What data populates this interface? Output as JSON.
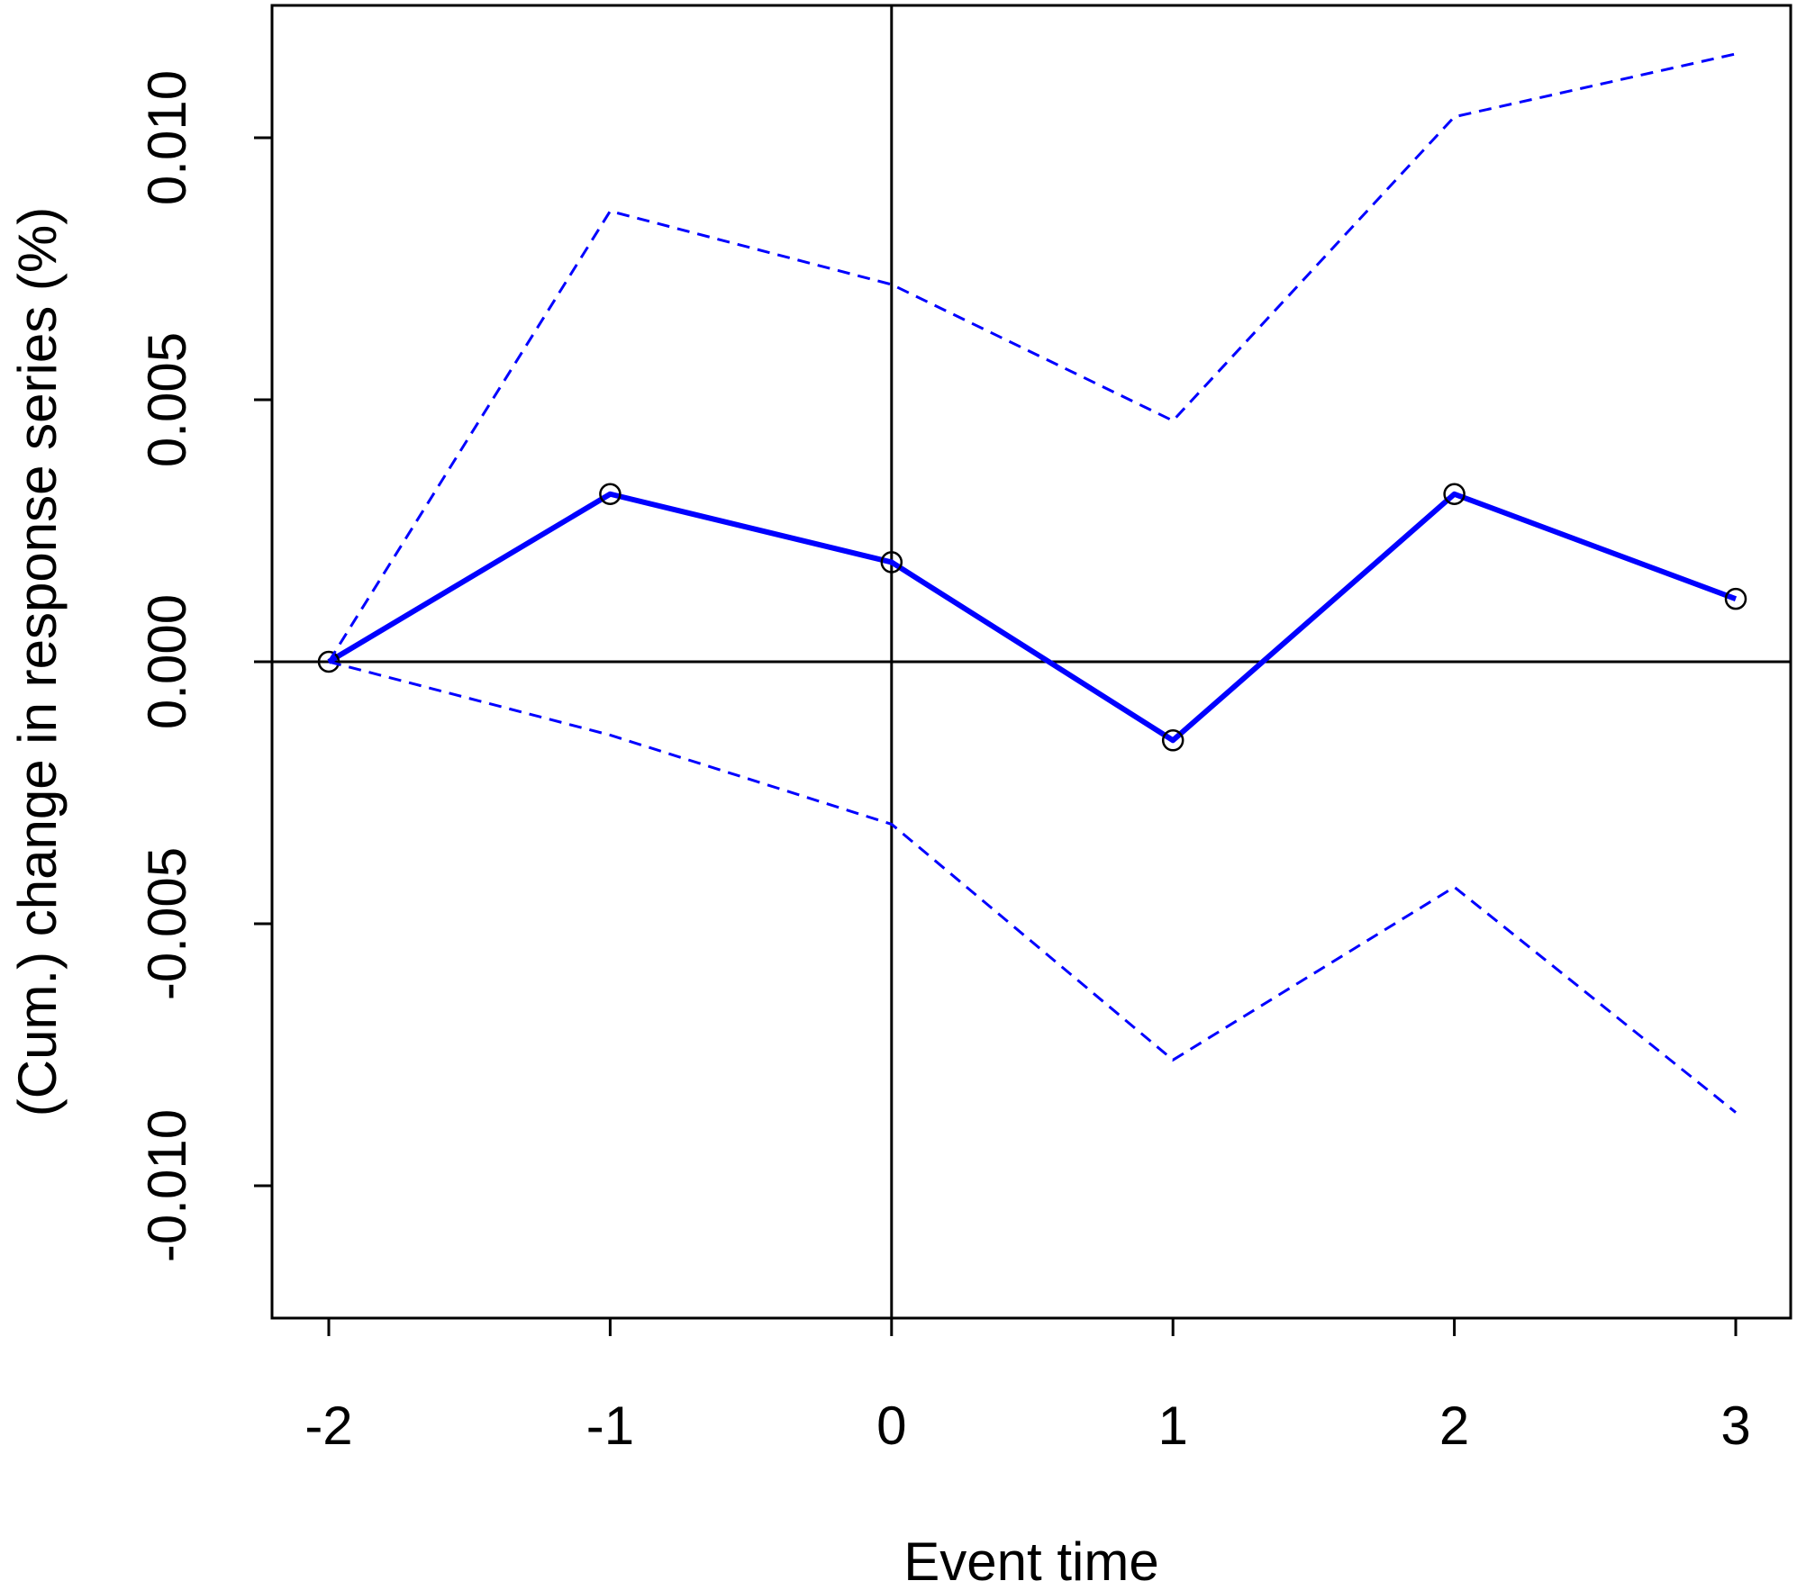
{
  "chart_data": {
    "type": "line",
    "xlabel": "Event time",
    "ylabel": "(Cum.) change in response series (%)",
    "x": [
      -2,
      -1,
      0,
      1,
      2,
      3
    ],
    "xticks": [
      "-2",
      "-1",
      "0",
      "1",
      "2",
      "3"
    ],
    "yticks": [
      "-0.010",
      "-0.005",
      "0.000",
      "0.005",
      "0.010"
    ],
    "ytick_values": [
      -0.01,
      -0.005,
      0.0,
      0.005,
      0.01
    ],
    "xlim": [
      -2.2,
      3.2
    ],
    "ylim": [
      -0.0125,
      0.0125
    ],
    "reference_lines": {
      "x": 0,
      "y": 0
    },
    "grid": false,
    "legend": "none",
    "series": [
      {
        "role": "estimate",
        "style": "solid",
        "markers": "open-circle",
        "color": "#0000ff",
        "values": [
          0.0,
          0.0032,
          0.0019,
          -0.0015,
          0.0032,
          0.0012
        ]
      },
      {
        "role": "upper-bound",
        "style": "dashed",
        "color": "#0000ff",
        "values": [
          0.0,
          0.0086,
          0.0072,
          0.0046,
          0.0104,
          0.0116
        ]
      },
      {
        "role": "lower-bound",
        "style": "dashed",
        "color": "#0000ff",
        "values": [
          0.0,
          -0.0014,
          -0.0031,
          -0.0076,
          -0.0043,
          -0.0086
        ]
      }
    ]
  }
}
